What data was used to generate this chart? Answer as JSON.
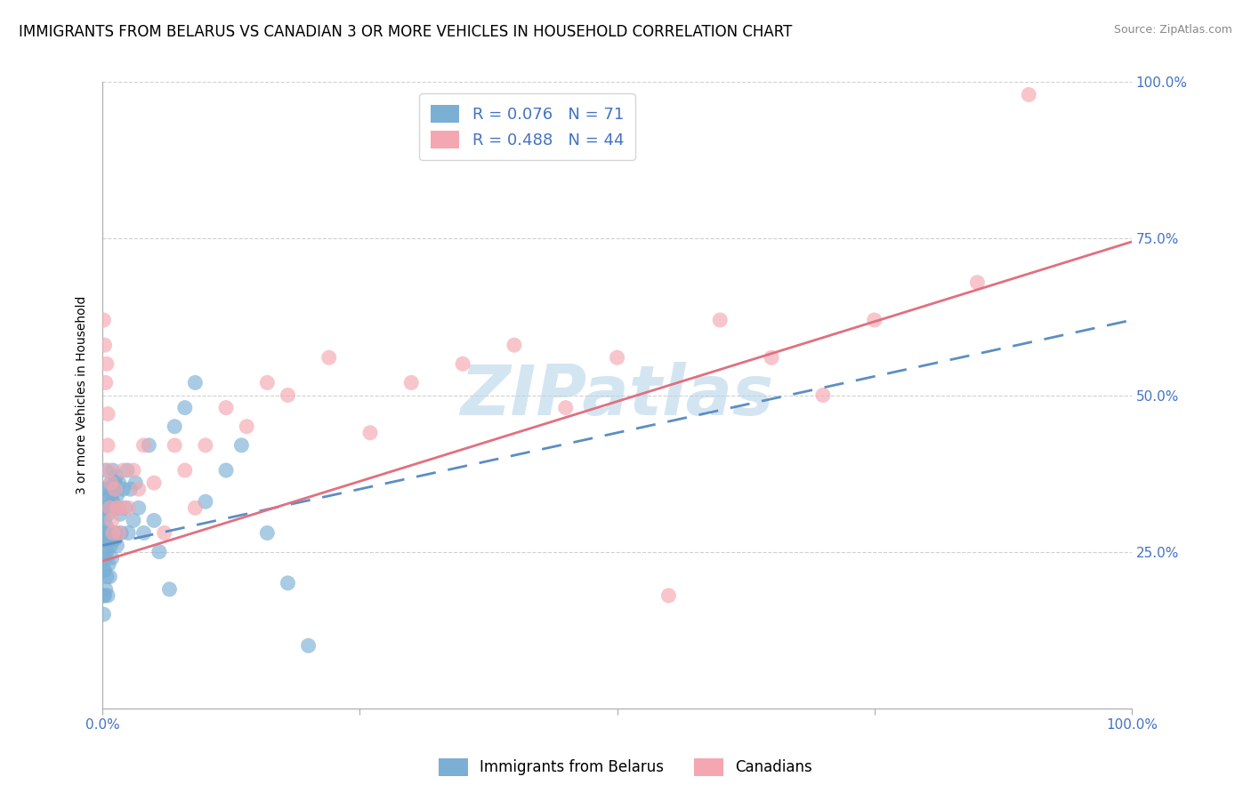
{
  "title": "IMMIGRANTS FROM BELARUS VS CANADIAN 3 OR MORE VEHICLES IN HOUSEHOLD CORRELATION CHART",
  "source": "Source: ZipAtlas.com",
  "ylabel": "3 or more Vehicles in Household",
  "xlim": [
    0,
    1.0
  ],
  "ylim": [
    0,
    1.0
  ],
  "series1_name": "Immigrants from Belarus",
  "series1_color": "#7bafd4",
  "series1_R": 0.076,
  "series1_N": 71,
  "series2_name": "Canadians",
  "series2_color": "#f4a7b0",
  "series2_R": 0.488,
  "series2_N": 44,
  "watermark": "ZIPatlas",
  "watermark_color": "#b8d4ea",
  "title_fontsize": 12,
  "axis_label_fontsize": 10,
  "tick_fontsize": 11,
  "legend_fontsize": 13,
  "blue_line_start_y": 0.26,
  "blue_line_end_y": 0.62,
  "pink_line_start_y": 0.235,
  "pink_line_end_y": 0.745,
  "blue_scatter_x": [
    0.001,
    0.001,
    0.001,
    0.001,
    0.001,
    0.001,
    0.002,
    0.002,
    0.002,
    0.002,
    0.002,
    0.003,
    0.003,
    0.003,
    0.003,
    0.003,
    0.004,
    0.004,
    0.004,
    0.004,
    0.005,
    0.005,
    0.005,
    0.005,
    0.006,
    0.006,
    0.006,
    0.007,
    0.007,
    0.007,
    0.008,
    0.008,
    0.009,
    0.009,
    0.01,
    0.01,
    0.01,
    0.011,
    0.011,
    0.012,
    0.012,
    0.013,
    0.013,
    0.014,
    0.014,
    0.015,
    0.016,
    0.017,
    0.018,
    0.02,
    0.022,
    0.024,
    0.025,
    0.027,
    0.03,
    0.032,
    0.035,
    0.04,
    0.045,
    0.05,
    0.055,
    0.065,
    0.07,
    0.08,
    0.09,
    0.1,
    0.12,
    0.135,
    0.16,
    0.18,
    0.2
  ],
  "blue_scatter_y": [
    0.32,
    0.28,
    0.25,
    0.22,
    0.18,
    0.15,
    0.35,
    0.3,
    0.27,
    0.22,
    0.18,
    0.38,
    0.32,
    0.28,
    0.24,
    0.19,
    0.33,
    0.29,
    0.25,
    0.21,
    0.35,
    0.31,
    0.27,
    0.18,
    0.34,
    0.28,
    0.23,
    0.32,
    0.27,
    0.21,
    0.36,
    0.26,
    0.34,
    0.24,
    0.38,
    0.33,
    0.27,
    0.35,
    0.28,
    0.36,
    0.27,
    0.37,
    0.28,
    0.34,
    0.26,
    0.32,
    0.36,
    0.31,
    0.28,
    0.35,
    0.32,
    0.38,
    0.28,
    0.35,
    0.3,
    0.36,
    0.32,
    0.28,
    0.42,
    0.3,
    0.25,
    0.19,
    0.45,
    0.48,
    0.52,
    0.33,
    0.38,
    0.42,
    0.28,
    0.2,
    0.1
  ],
  "pink_scatter_x": [
    0.001,
    0.002,
    0.003,
    0.004,
    0.005,
    0.005,
    0.006,
    0.007,
    0.008,
    0.009,
    0.01,
    0.012,
    0.014,
    0.016,
    0.018,
    0.02,
    0.025,
    0.03,
    0.035,
    0.04,
    0.05,
    0.06,
    0.07,
    0.08,
    0.09,
    0.1,
    0.12,
    0.14,
    0.16,
    0.18,
    0.22,
    0.26,
    0.3,
    0.35,
    0.4,
    0.45,
    0.5,
    0.55,
    0.6,
    0.65,
    0.7,
    0.75,
    0.85,
    0.9
  ],
  "pink_scatter_y": [
    0.62,
    0.58,
    0.52,
    0.55,
    0.47,
    0.42,
    0.38,
    0.32,
    0.36,
    0.3,
    0.28,
    0.35,
    0.32,
    0.28,
    0.32,
    0.38,
    0.32,
    0.38,
    0.35,
    0.42,
    0.36,
    0.28,
    0.42,
    0.38,
    0.32,
    0.42,
    0.48,
    0.45,
    0.52,
    0.5,
    0.56,
    0.44,
    0.52,
    0.55,
    0.58,
    0.48,
    0.56,
    0.18,
    0.62,
    0.56,
    0.5,
    0.62,
    0.68,
    0.98
  ]
}
